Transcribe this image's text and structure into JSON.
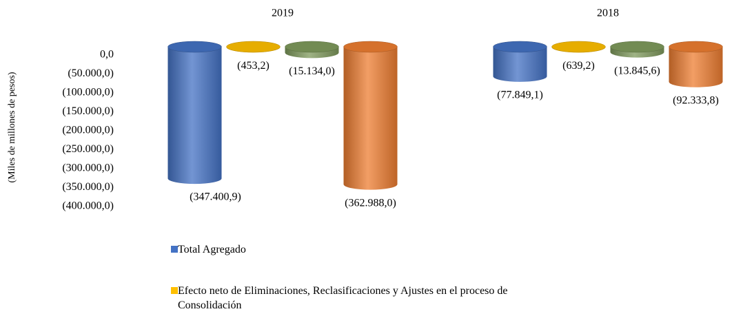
{
  "chart_data": {
    "type": "cylinder-bar",
    "y_axis_label": "(Miles de millones de pesos)",
    "categories": [
      "2019",
      "2018"
    ],
    "series": [
      {
        "name": "Total Agregado",
        "color": "#4472c4",
        "values": [
          -347400.9,
          -77849.1
        ],
        "value_labels": [
          "(347.400,9)",
          "(77.849,1)"
        ]
      },
      {
        "name": "Efecto neto de Eliminaciones, Reclasificaciones y Ajustes en el proceso de Consolidación",
        "color": "#ffc000",
        "values": [
          -453.2,
          -639.2
        ],
        "value_labels": [
          "(453,2)",
          "(639,2)"
        ]
      },
      {
        "color": "#7f9a5c",
        "values": [
          -15134.0,
          -13845.6
        ],
        "value_labels": [
          "(15.134,0)",
          "(13.845,6)"
        ]
      },
      {
        "color": "#ed7d31",
        "values": [
          -362988.0,
          -92333.8
        ],
        "value_labels": [
          "(362.988,0)",
          "(92.333,8)"
        ]
      }
    ],
    "ylim": [
      -400000,
      0
    ],
    "yticks": [
      {
        "value": 0,
        "label": "0,0"
      },
      {
        "value": -50000,
        "label": "(50.000,0)"
      },
      {
        "value": -100000,
        "label": "(100.000,0)"
      },
      {
        "value": -150000,
        "label": "(150.000,0)"
      },
      {
        "value": -200000,
        "label": "(200.000,0)"
      },
      {
        "value": -250000,
        "label": "(250.000,0)"
      },
      {
        "value": -300000,
        "label": "(300.000,0)"
      },
      {
        "value": -350000,
        "label": "(350.000,0)"
      },
      {
        "value": -400000,
        "label": "(400.000,0)"
      }
    ],
    "grid": false
  }
}
